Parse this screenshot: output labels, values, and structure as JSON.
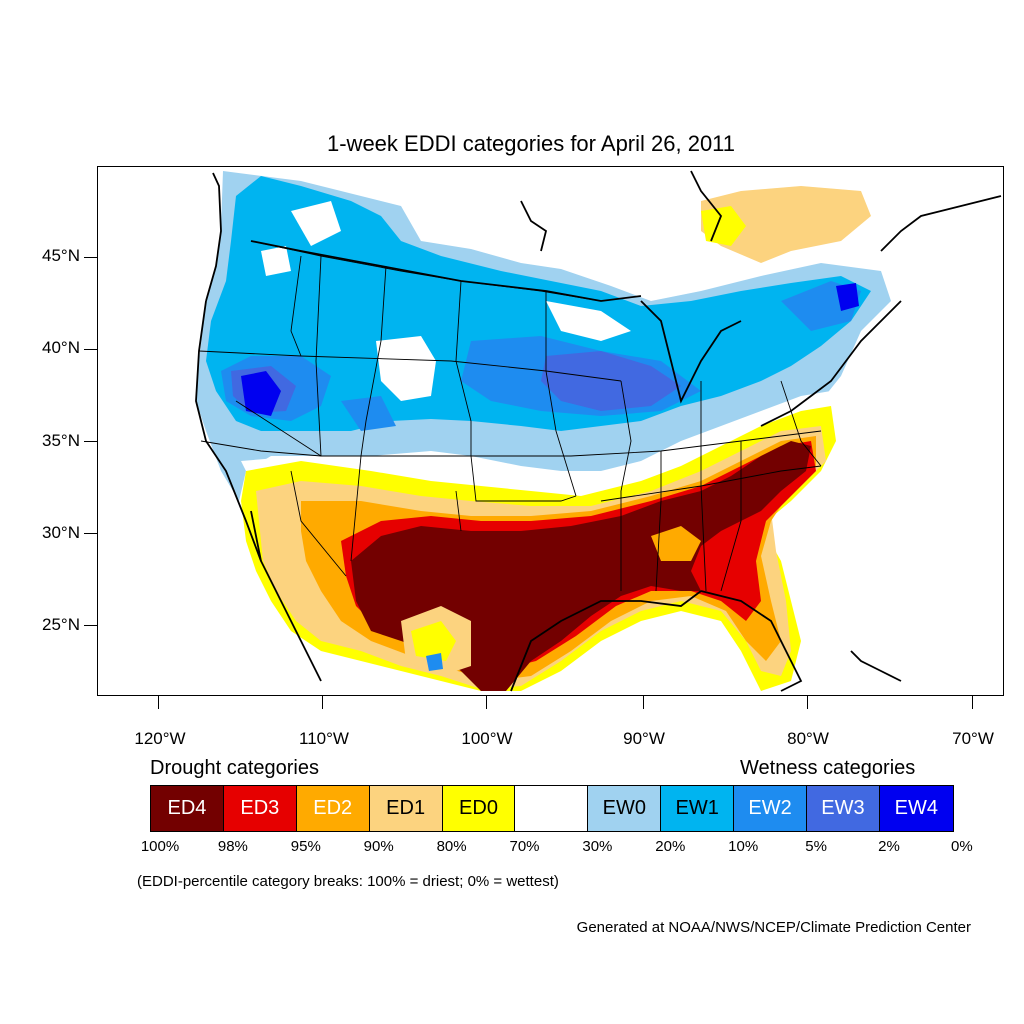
{
  "title": "1-week EDDI categories for April 26, 2011",
  "lat_labels": [
    "45°N",
    "40°N",
    "35°N",
    "30°N",
    "25°N"
  ],
  "lon_labels": [
    "120°W",
    "110°W",
    "100°W",
    "90°W",
    "80°W",
    "70°W"
  ],
  "legend": {
    "drought_heading": "Drought categories",
    "wetness_heading": "Wetness categories",
    "categories": [
      {
        "label": "ED4",
        "color": "#730000",
        "text_color": "#ffffff"
      },
      {
        "label": "ED3",
        "color": "#e60000",
        "text_color": "#ffffff"
      },
      {
        "label": "ED2",
        "color": "#ffaa00",
        "text_color": "#ffffff"
      },
      {
        "label": "ED1",
        "color": "#fcd37f",
        "text_color": "#000000"
      },
      {
        "label": "ED0",
        "color": "#ffff00",
        "text_color": "#000000"
      },
      {
        "label": "",
        "color": "#ffffff",
        "text_color": "#000000"
      },
      {
        "label": "EW0",
        "color": "#a0d2f0",
        "text_color": "#000000"
      },
      {
        "label": "EW1",
        "color": "#00b4f0",
        "text_color": "#000000"
      },
      {
        "label": "EW2",
        "color": "#1e8cf0",
        "text_color": "#ffffff"
      },
      {
        "label": "EW3",
        "color": "#4169e1",
        "text_color": "#ffffff"
      },
      {
        "label": "EW4",
        "color": "#0000f0",
        "text_color": "#ffffff"
      }
    ],
    "breaks": [
      "100%",
      "98%",
      "95%",
      "90%",
      "80%",
      "70%",
      "30%",
      "20%",
      "10%",
      "5%",
      "2%",
      "0%"
    ]
  },
  "note": "(EDDI-percentile category breaks: 100% = driest; 0% = wettest)",
  "credit": "Generated at NOAA/NWS/NCEP/Climate Prediction Center"
}
